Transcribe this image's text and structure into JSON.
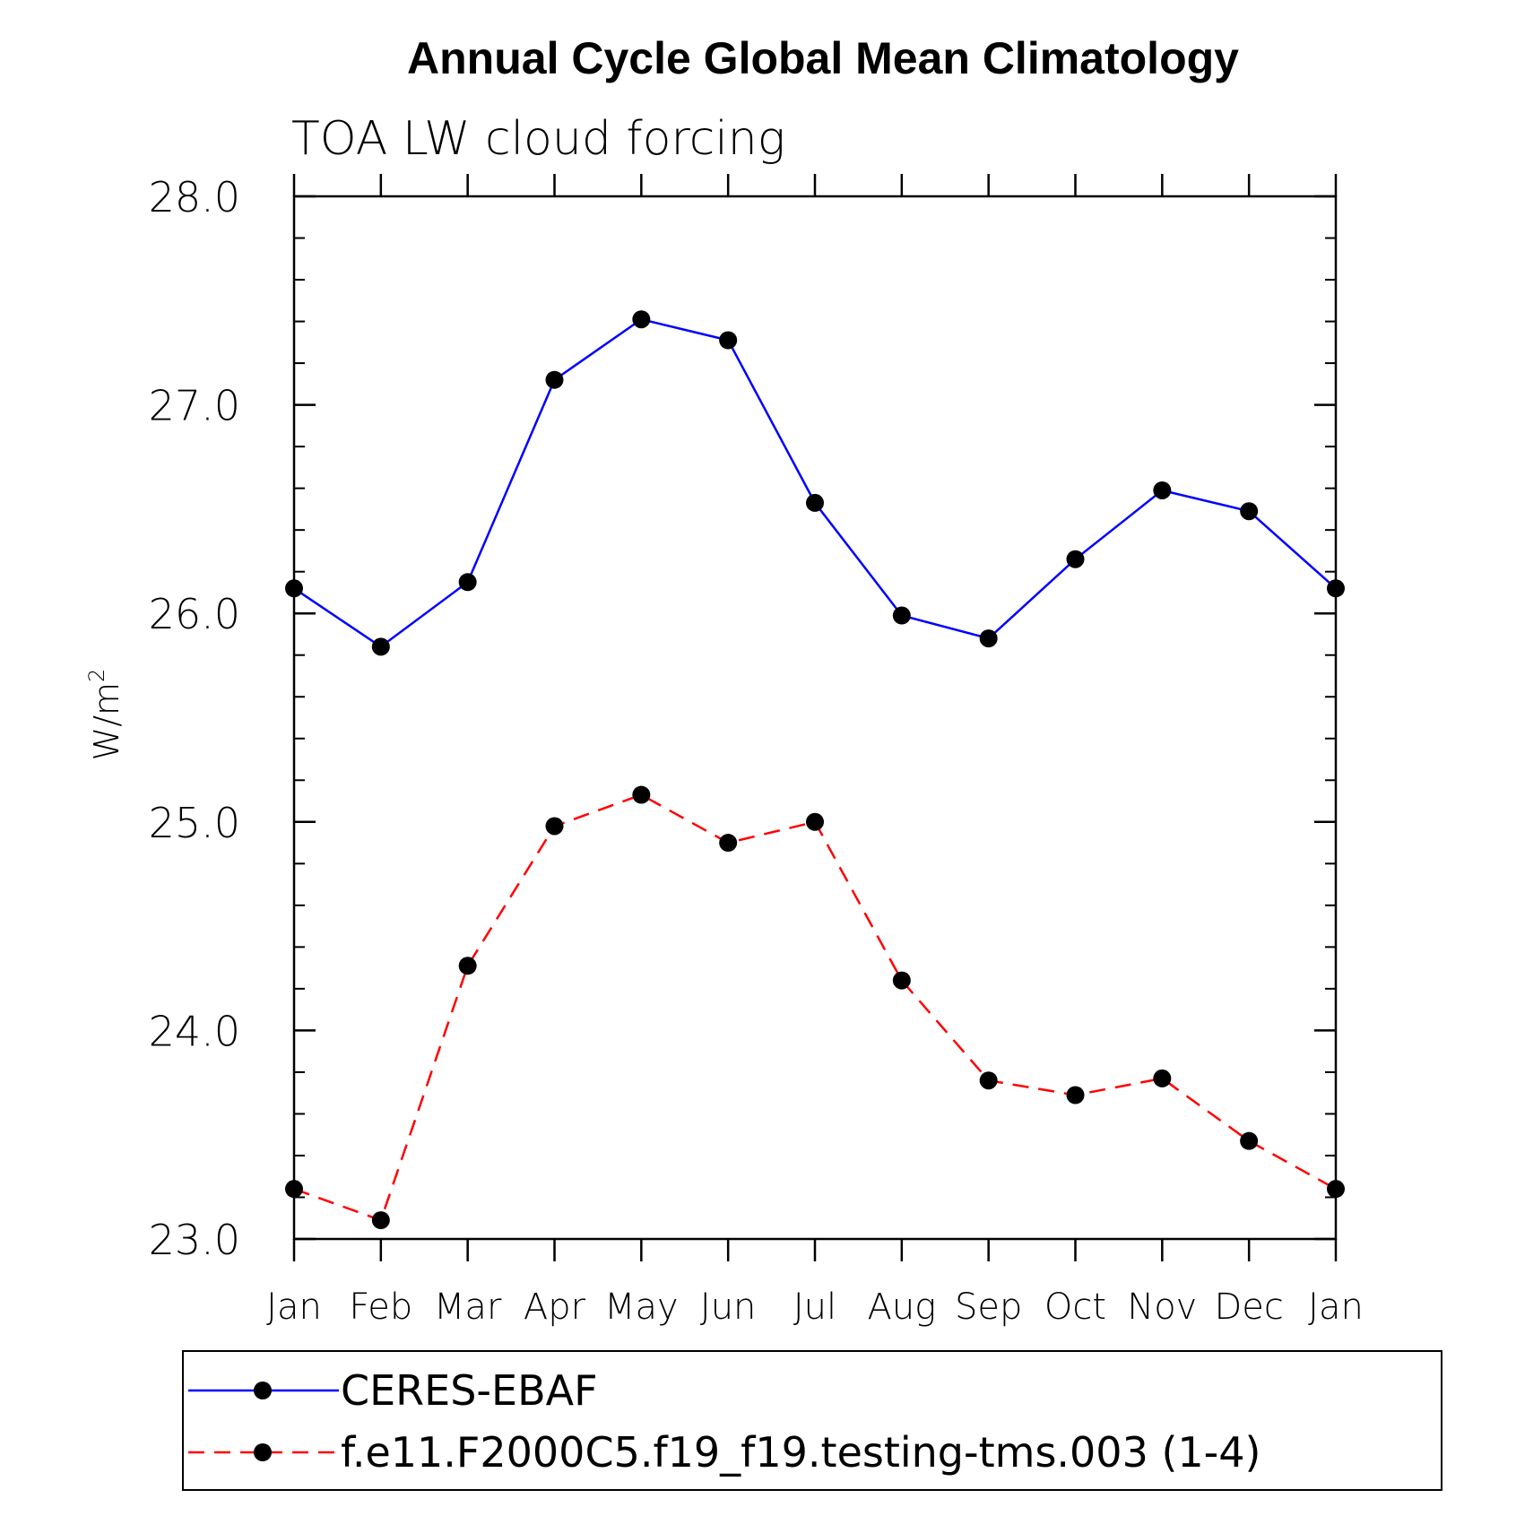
{
  "chart_data": {
    "type": "line",
    "title": "Annual Cycle Global Mean Climatology",
    "subtitle": "TOA LW cloud forcing",
    "xlabel": "",
    "ylabel": "W/m",
    "ylabel_superscript": "2",
    "ylim": [
      23.0,
      28.0
    ],
    "yticks": [
      "23.0",
      "24.0",
      "25.0",
      "26.0",
      "27.0",
      "28.0"
    ],
    "categories": [
      "Jan",
      "Feb",
      "Mar",
      "Apr",
      "May",
      "Jun",
      "Jul",
      "Aug",
      "Sep",
      "Oct",
      "Nov",
      "Dec",
      "Jan"
    ],
    "series": [
      {
        "name": "CERES-EBAF",
        "color": "#0000ff",
        "dash": "solid",
        "values": [
          26.12,
          25.84,
          26.15,
          27.12,
          27.41,
          27.31,
          26.53,
          25.99,
          25.88,
          26.26,
          26.59,
          26.49,
          26.12
        ]
      },
      {
        "name": "f.e11.F2000C5.f19_f19.testing-tms.003 (1-4)",
        "color": "#ff0000",
        "dash": "dashed",
        "values": [
          23.24,
          23.09,
          24.31,
          24.98,
          25.13,
          24.9,
          25.0,
          24.24,
          23.76,
          23.69,
          23.77,
          23.47,
          23.24
        ]
      }
    ],
    "legend_position": "bottom"
  }
}
